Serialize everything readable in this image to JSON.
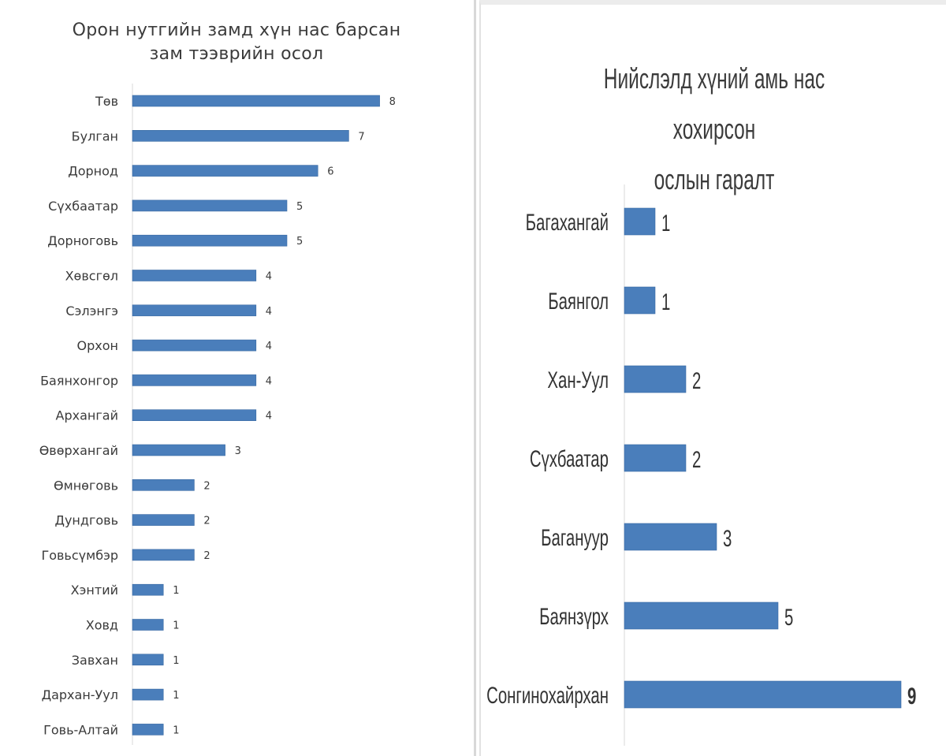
{
  "chart_data": [
    {
      "type": "bar",
      "orientation": "horizontal",
      "title": "Орон нутгийн замд хүн нас барсан зам тээврийн осол",
      "title_lines": [
        "Орон нутгийн замд хүн нас барсан",
        "зам тээврийн осол"
      ],
      "categories": [
        "Төв",
        "Булган",
        "Дорнод",
        "Сүхбаатар",
        "Дорноговь",
        "Хөвсгөл",
        "Сэлэнгэ",
        "Орхон",
        "Баянхонгор",
        "Архангай",
        "Өвөрхангай",
        "Өмнөговь",
        "Дундговь",
        "Говьсүмбэр",
        "Хэнтий",
        "Ховд",
        "Завхан",
        "Дархан-Уул",
        "Говь-Алтай"
      ],
      "values": [
        8,
        7,
        6,
        5,
        5,
        4,
        4,
        4,
        4,
        4,
        3,
        2,
        2,
        2,
        1,
        1,
        1,
        1,
        1
      ],
      "xlim": [
        0,
        8
      ],
      "grid": false,
      "data_labels": true,
      "bar_color": "#4a7ebb"
    },
    {
      "type": "bar",
      "orientation": "horizontal",
      "title": "Нийслэлд хүний амь нас хохирсон ослын гаралт",
      "title_lines": [
        "Нийслэлд хүний амь нас хохирсон",
        "ослын гаралт"
      ],
      "categories": [
        "Багахангай",
        "Баянгол",
        "Хан-Уул",
        "Сүхбаатар",
        "Багануур",
        "Баянзүрх",
        "Сонгинохайрхан"
      ],
      "values": [
        1,
        1,
        2,
        2,
        3,
        5,
        9
      ],
      "xlim": [
        0,
        9
      ],
      "grid": false,
      "data_labels": true,
      "bar_color": "#4a7ebb"
    }
  ],
  "colors": {
    "bar": "#4a7ebb",
    "bar_edge": "#3a6aa3",
    "axis": "#d9d9d9",
    "text": "#3a3a3a"
  }
}
